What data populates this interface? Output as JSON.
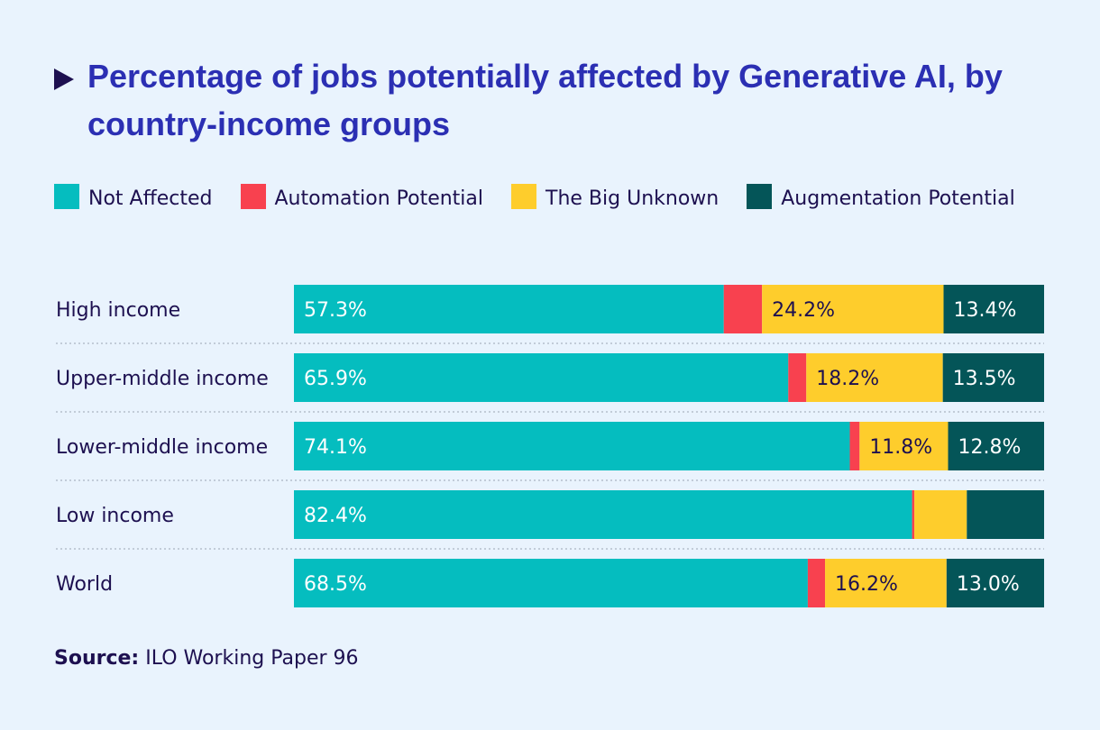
{
  "title": "Percentage of jobs potentially affected by Generative AI, by country-income groups",
  "legend": [
    {
      "label": "Not Affected",
      "color": "#05bdbf"
    },
    {
      "label": "Automation Potential",
      "color": "#f8414f"
    },
    {
      "label": "The Big Unknown",
      "color": "#fecd2c"
    },
    {
      "label": "Augmentation Potential",
      "color": "#045558"
    }
  ],
  "source": {
    "label": "Source:",
    "text": "ILO Working Paper 96"
  },
  "chart_data": {
    "type": "bar",
    "orientation": "horizontal",
    "stacked": true,
    "title": "Percentage of jobs potentially affected by Generative AI, by country-income groups",
    "categories": [
      "High income",
      "Upper-middle income",
      "Lower-middle income",
      "Low income",
      "World"
    ],
    "series": [
      {
        "name": "Not Affected",
        "color": "#05bdbf",
        "values": [
          57.3,
          65.9,
          74.1,
          82.4,
          68.5
        ],
        "labels": [
          "57.3%",
          "65.9%",
          "74.1%",
          "82.4%",
          "68.5%"
        ],
        "label_color": "#ffffff"
      },
      {
        "name": "Automation Potential",
        "color": "#f8414f",
        "values": [
          5.1,
          2.4,
          1.3,
          0.3,
          2.3
        ],
        "labels": [
          "",
          "",
          "",
          "",
          ""
        ],
        "label_color": "#ffffff"
      },
      {
        "name": "The Big Unknown",
        "color": "#fecd2c",
        "values": [
          24.2,
          18.2,
          11.8,
          7.0,
          16.2
        ],
        "labels": [
          "24.2%",
          "18.2%",
          "11.8%",
          "",
          "16.2%"
        ],
        "label_color": "#1d1050"
      },
      {
        "name": "Augmentation Potential",
        "color": "#045558",
        "values": [
          13.4,
          13.5,
          12.8,
          10.3,
          13.0
        ],
        "labels": [
          "13.4%",
          "13.5%",
          "12.8%",
          "",
          "13.0%"
        ],
        "label_color": "#ffffff"
      }
    ],
    "xlim": [
      0,
      100
    ],
    "unit": "%",
    "grid": false
  }
}
